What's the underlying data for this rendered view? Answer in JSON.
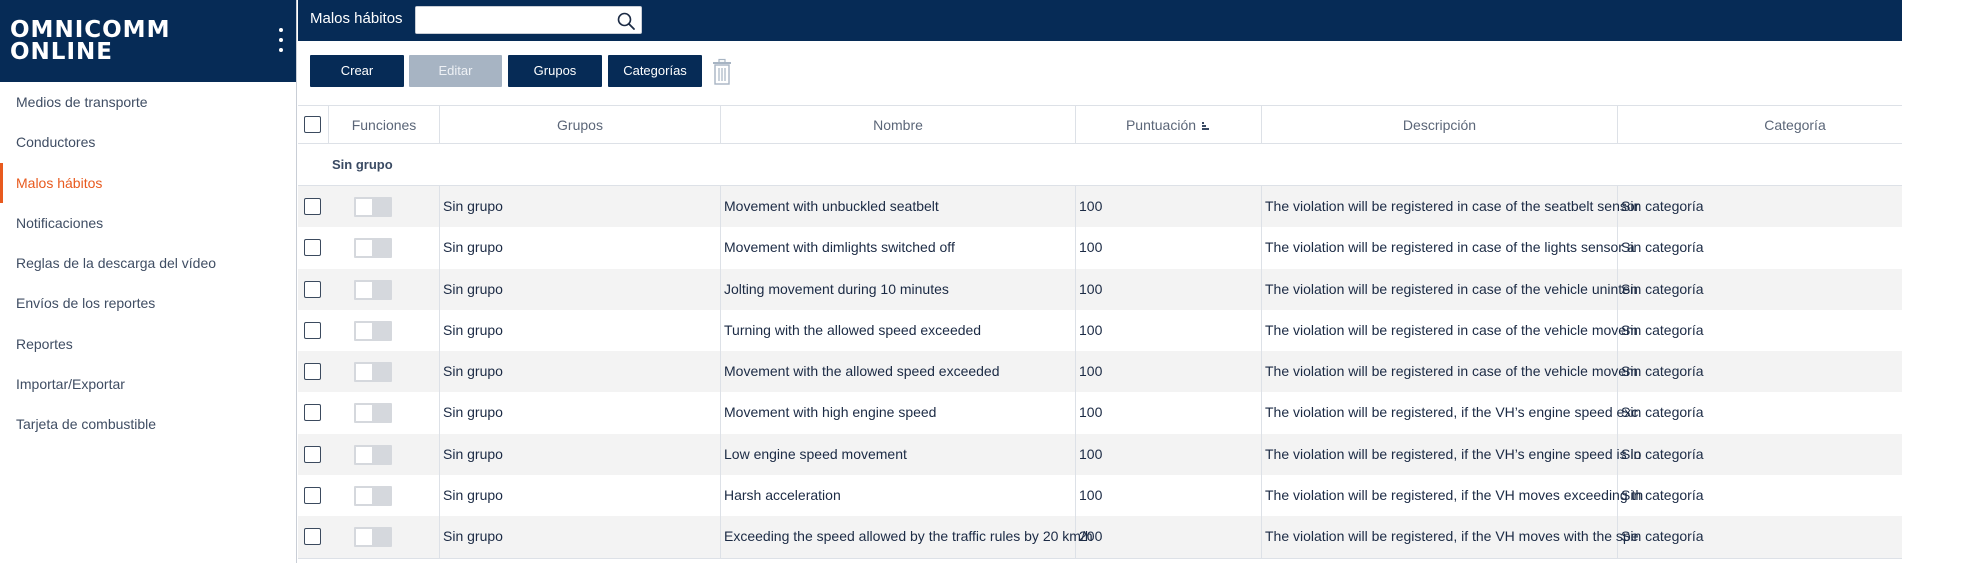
{
  "brand": {
    "line1": "OMNICOMM",
    "line2": "ONLINE"
  },
  "sidebar": {
    "items": [
      {
        "label": "Medios de transporte",
        "active": false
      },
      {
        "label": "Conductores",
        "active": false
      },
      {
        "label": "Malos hábitos",
        "active": true
      },
      {
        "label": "Notificaciones",
        "active": false
      },
      {
        "label": "Reglas de la descarga del vídeo",
        "active": false
      },
      {
        "label": "Envíos de los reportes",
        "active": false
      },
      {
        "label": "Reportes",
        "active": false
      },
      {
        "label": "Importar/Exportar",
        "active": false
      },
      {
        "label": "Tarjeta de combustible",
        "active": false
      }
    ]
  },
  "topbar": {
    "title": "Malos hábitos",
    "search": {
      "value": "",
      "placeholder": ""
    }
  },
  "toolbar": {
    "crear": "Crear",
    "editar": "Editar",
    "grupos": "Grupos",
    "categorias": "Categorías"
  },
  "table": {
    "headers": {
      "funciones": "Funciones",
      "grupos": "Grupos",
      "nombre": "Nombre",
      "puntuacion": "Puntuación",
      "descripcion": "Descripción",
      "categoria": "Categoría"
    },
    "group_label": "Sin grupo",
    "rows": [
      {
        "grupo": "Sin grupo",
        "nombre": "Movement with unbuckled seatbelt",
        "puntuacion": "100",
        "descripcion": "The violation will be registered in case of the seatbelt sensor",
        "categoria": "Sin categoría"
      },
      {
        "grupo": "Sin grupo",
        "nombre": "Movement with dimlights switched off",
        "puntuacion": "100",
        "descripcion": "The violation will be registered in case of the lights sensor a",
        "categoria": "Sin categoría"
      },
      {
        "grupo": "Sin grupo",
        "nombre": "Jolting movement during 10 minutes",
        "puntuacion": "100",
        "descripcion": "The violation will be registered in case of the vehicle uninten",
        "categoria": "Sin categoría"
      },
      {
        "grupo": "Sin grupo",
        "nombre": "Turning with the allowed speed exceeded",
        "puntuacion": "100",
        "descripcion": "The violation will be registered in case of the vehicle movem",
        "categoria": "Sin categoría"
      },
      {
        "grupo": "Sin grupo",
        "nombre": "Movement with the allowed speed exceeded",
        "puntuacion": "100",
        "descripcion": "The violation will be registered in case of the vehicle movem",
        "categoria": "Sin categoría"
      },
      {
        "grupo": "Sin grupo",
        "nombre": "Movement with high engine speed",
        "puntuacion": "100",
        "descripcion": "The violation will be registered, if the VH’s engine speed exc",
        "categoria": "Sin categoría"
      },
      {
        "grupo": "Sin grupo",
        "nombre": "Low engine speed movement",
        "puntuacion": "100",
        "descripcion": "The violation will be registered, if the VH’s engine speed is lo",
        "categoria": "Sin categoría"
      },
      {
        "grupo": "Sin grupo",
        "nombre": "Harsh acceleration",
        "puntuacion": "100",
        "descripcion": "The violation will be registered, if the VH moves exceeding th",
        "categoria": "Sin categoría"
      },
      {
        "grupo": "Sin grupo",
        "nombre": "Exceeding the speed allowed by the traffic rules by 20 km/h",
        "puntuacion": "200",
        "descripcion": "The violation will be registered, if the VH moves with the spe",
        "categoria": "Sin categoría"
      }
    ]
  }
}
